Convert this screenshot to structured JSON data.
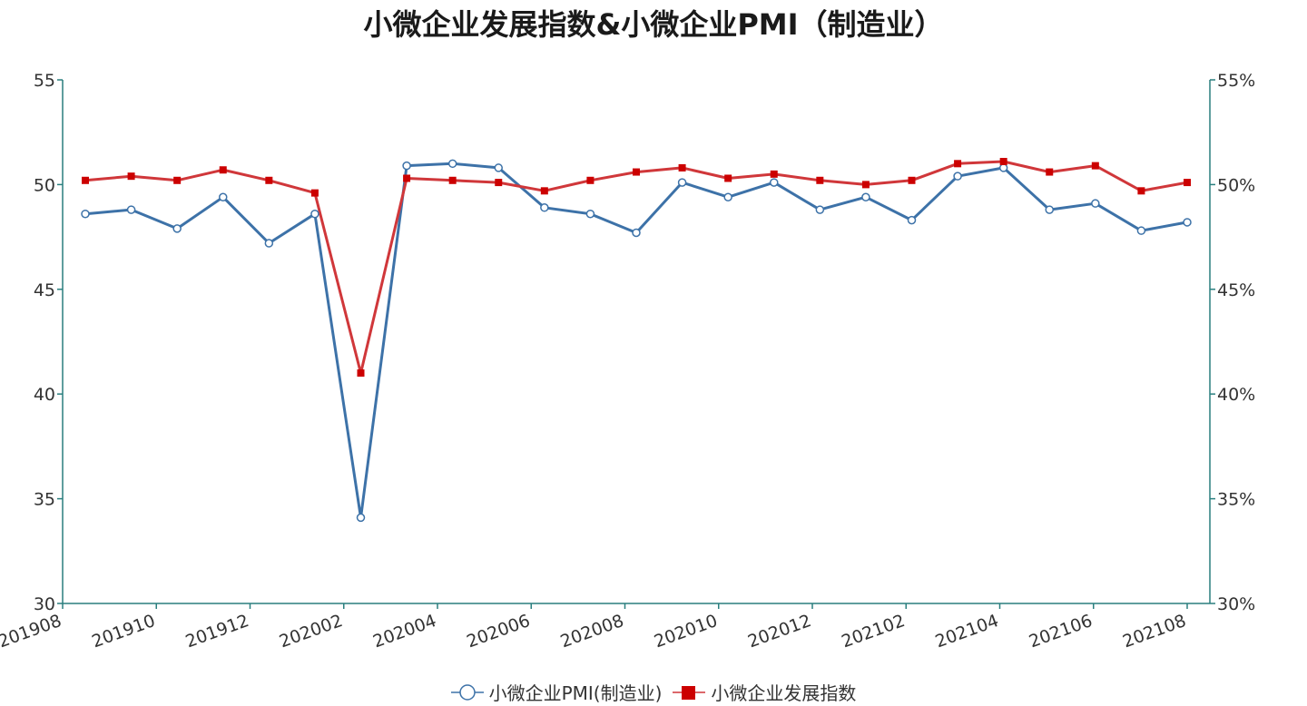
{
  "chart_data": {
    "type": "line",
    "title": "小微企业发展指数&小微企业PMI（制造业）",
    "x": [
      "201908",
      "201909",
      "201910",
      "201911",
      "201912",
      "202001",
      "202002",
      "202003",
      "202004",
      "202005",
      "202006",
      "202007",
      "202008",
      "202009",
      "202010",
      "202011",
      "202012",
      "202101",
      "202102",
      "202103",
      "202104",
      "202105",
      "202106",
      "202107",
      "202108"
    ],
    "x_tick_labels": [
      "201908",
      "201910",
      "201912",
      "202002",
      "202004",
      "202006",
      "202008",
      "202010",
      "202012",
      "202102",
      "202104",
      "202106",
      "202108"
    ],
    "series": [
      {
        "name": "小微企业PMI(制造业)",
        "axis": "left",
        "color": "#3d72a8",
        "marker": "open-circle",
        "values": [
          48.6,
          48.8,
          47.9,
          49.4,
          47.2,
          48.6,
          34.1,
          50.9,
          51.0,
          50.8,
          48.9,
          48.6,
          47.7,
          50.1,
          49.4,
          50.1,
          48.8,
          49.4,
          48.3,
          50.4,
          50.8,
          48.8,
          49.1,
          47.8,
          48.2
        ]
      },
      {
        "name": "小微企业发展指数",
        "axis": "right",
        "color": "#d0373a",
        "marker_color": "#cc0000",
        "marker": "filled-square",
        "values": [
          50.2,
          50.4,
          50.2,
          50.7,
          50.2,
          49.6,
          41.0,
          50.3,
          50.2,
          50.1,
          49.7,
          50.2,
          50.6,
          50.8,
          50.3,
          50.5,
          50.2,
          50.0,
          50.2,
          51.0,
          51.1,
          50.6,
          50.9,
          49.7,
          50.1
        ]
      }
    ],
    "y_left": {
      "ylim": [
        30,
        55
      ],
      "ticks": [
        30,
        35,
        40,
        45,
        50,
        55
      ]
    },
    "y_right": {
      "ylim": [
        30,
        55
      ],
      "ticks": [
        "30%",
        "35%",
        "40%",
        "45%",
        "50%",
        "55%"
      ]
    },
    "axis_color": "#2a7f7f",
    "grid": false,
    "legend_position": "bottom"
  }
}
